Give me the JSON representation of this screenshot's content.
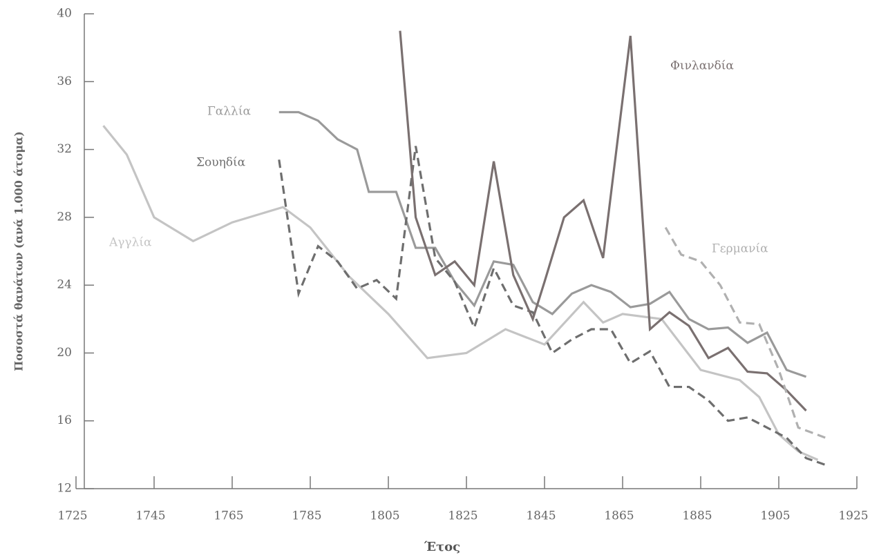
{
  "chart_data": {
    "type": "line",
    "xlabel": "Έτος",
    "ylabel": "Ποσοστά θανάτων (ανά 1.000 άτομα)",
    "xlim": [
      1725,
      1925
    ],
    "xticks": [
      1725,
      1745,
      1765,
      1785,
      1805,
      1825,
      1845,
      1865,
      1885,
      1905,
      1925
    ],
    "ylim": [
      12,
      40
    ],
    "yticks": [
      12,
      16,
      20,
      24,
      28,
      32,
      36,
      40
    ],
    "series": [
      {
        "name": "Αγγλία",
        "color": "#c4c4c4",
        "dashed": false,
        "x": [
          1732,
          1738,
          1745,
          1755,
          1765,
          1778,
          1785,
          1795,
          1805,
          1815,
          1825,
          1835,
          1845,
          1855,
          1860,
          1865,
          1875,
          1885,
          1895,
          1900,
          1905,
          1910,
          1915
        ],
        "values": [
          33.4,
          31.7,
          28.0,
          26.6,
          27.7,
          28.6,
          27.4,
          24.5,
          22.3,
          19.7,
          20.0,
          21.4,
          20.5,
          23.0,
          21.8,
          22.3,
          22.0,
          19.0,
          18.4,
          17.4,
          15.2,
          14.2,
          13.7
        ]
      },
      {
        "name": "Γαλλία",
        "color": "#9a9a9a",
        "dashed": false,
        "x": [
          1777,
          1782,
          1787,
          1792,
          1797,
          1800,
          1807,
          1812,
          1817,
          1822,
          1827,
          1832,
          1837,
          1842,
          1847,
          1852,
          1857,
          1862,
          1867,
          1872,
          1877,
          1882,
          1887,
          1892,
          1897,
          1902,
          1907,
          1912
        ],
        "values": [
          34.2,
          34.2,
          33.7,
          32.6,
          32.0,
          29.5,
          29.5,
          26.2,
          26.2,
          24.2,
          22.8,
          25.4,
          25.2,
          23.0,
          22.3,
          23.5,
          24.0,
          23.6,
          22.7,
          22.9,
          23.6,
          22.0,
          21.4,
          21.5,
          20.6,
          21.2,
          19.0,
          18.6
        ]
      },
      {
        "name": "Σουηδία",
        "color": "#6e6e6e",
        "dashed": true,
        "x": [
          1777,
          1782,
          1787,
          1792,
          1797,
          1802,
          1807,
          1812,
          1817,
          1822,
          1827,
          1832,
          1837,
          1842,
          1847,
          1852,
          1857,
          1862,
          1867,
          1872,
          1877,
          1882,
          1887,
          1892,
          1897,
          1902,
          1907,
          1912,
          1917
        ],
        "values": [
          31.4,
          23.5,
          26.3,
          25.4,
          23.8,
          24.3,
          23.2,
          32.2,
          25.6,
          24.2,
          21.5,
          25.0,
          22.8,
          22.4,
          20.0,
          20.8,
          21.4,
          21.4,
          19.4,
          20.1,
          18.0,
          18.0,
          17.2,
          16.0,
          16.2,
          15.6,
          15.0,
          13.8,
          13.4
        ]
      },
      {
        "name": "Φινλανδία",
        "color": "#7a7070",
        "dashed": false,
        "x": [
          1808,
          1812,
          1817,
          1822,
          1827,
          1832,
          1837,
          1842,
          1845,
          1850,
          1855,
          1860,
          1867,
          1872,
          1877,
          1882,
          1887,
          1892,
          1897,
          1902,
          1907,
          1912
        ],
        "values": [
          39.0,
          28.0,
          24.6,
          25.4,
          24.0,
          31.3,
          24.6,
          22.0,
          24.2,
          28.0,
          29.0,
          25.6,
          38.7,
          21.4,
          22.4,
          21.6,
          19.7,
          20.3,
          18.9,
          18.8,
          17.8,
          16.6
        ]
      },
      {
        "name": "Γερμανία",
        "color": "#b0b0b0",
        "dashed": true,
        "x": [
          1876,
          1880,
          1885,
          1890,
          1895,
          1900,
          1905,
          1910,
          1917
        ],
        "values": [
          27.4,
          25.8,
          25.4,
          24.0,
          21.8,
          21.7,
          19.0,
          15.6,
          15.0
        ]
      }
    ]
  }
}
